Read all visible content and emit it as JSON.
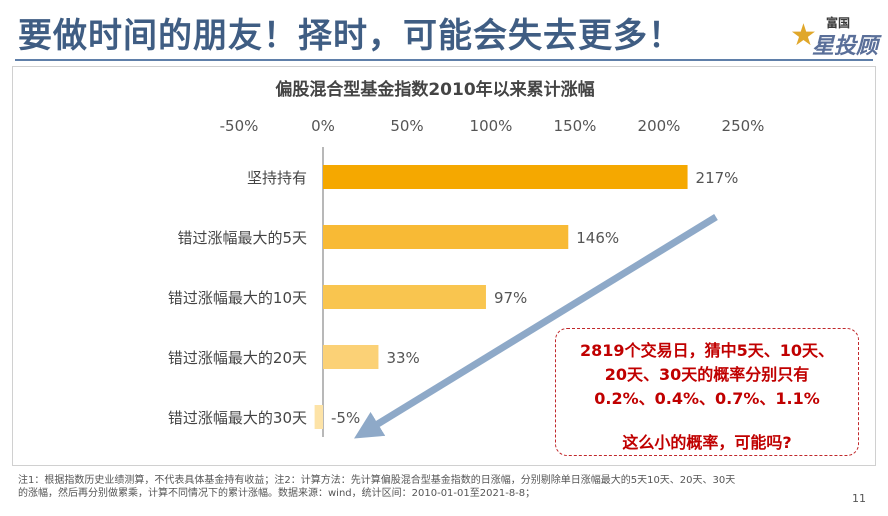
{
  "page": {
    "title": "要做时间的朋友！择时，可能会失去更多！",
    "logo_top": "富国",
    "logo_main": "星投顾",
    "footnote": "注1：根据指数历史业绩测算，不代表具体基金持有收益；注2：计算方法：先计算偏股混合型基金指数的日涨幅，分别剔除单日涨幅最大的5天10天、20天、30天的涨幅，然后再分别做累乘，计算不同情况下的累计涨幅。数据来源：wind，统计区间：2010-01-01至2021-8-8；",
    "page_number": "11"
  },
  "annotation": {
    "lines": [
      "2819个交易日，猜中5天、10天、",
      "20天、30天的概率分别只有",
      "0.2%、0.4%、0.7%、1.1%"
    ],
    "question": "这么小的概率，可能吗?"
  },
  "chart_data": {
    "type": "bar",
    "orientation": "horizontal",
    "title": "偏股混合型基金指数2010年以来累计涨幅",
    "categories": [
      "坚持持有",
      "错过涨幅最大的5天",
      "错过涨幅最大的10天",
      "错过涨幅最大的20天",
      "错过涨幅最大的30天"
    ],
    "values": [
      217,
      146,
      97,
      33,
      -5
    ],
    "value_labels": [
      "217%",
      "146%",
      "97%",
      "33%",
      "-5%"
    ],
    "bar_colors": [
      "#f5a800",
      "#f8ba35",
      "#f9c54f",
      "#fbd176",
      "#fde3a7"
    ],
    "xlim": [
      -50,
      250
    ],
    "x_ticks": [
      -50,
      0,
      50,
      100,
      150,
      200,
      250
    ],
    "x_tick_labels": [
      "-50%",
      "0%",
      "50%",
      "100%",
      "150%",
      "200%",
      "250%"
    ],
    "axis_position": "top",
    "grid": false,
    "trend_arrow_color": "#8ea9c8"
  }
}
